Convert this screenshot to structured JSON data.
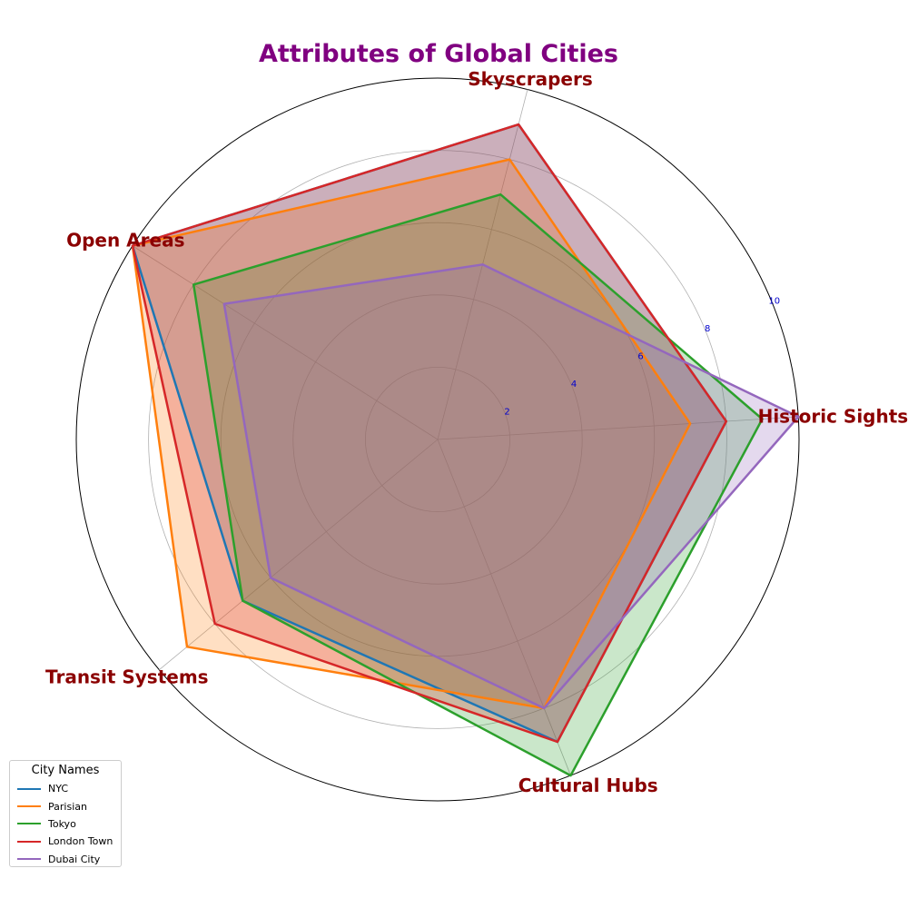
{
  "chart_data": {
    "type": "radar",
    "title": "Attributes of Global Cities",
    "categories": [
      "Historic Sights",
      "Skyscrapers",
      "Open Areas",
      "Transit Systems",
      "Cultural Hubs"
    ],
    "rlim": [
      0,
      10
    ],
    "rticks": [
      2,
      4,
      6,
      8,
      10
    ],
    "grid": true,
    "legend_title": "City Names",
    "legend_position": "bottom-left",
    "series": [
      {
        "name": "NYC",
        "color": "#1f77b4",
        "values": [
          8,
          9,
          10,
          7,
          9
        ]
      },
      {
        "name": "Parisian",
        "color": "#ff7f0e",
        "values": [
          7,
          8,
          10,
          9,
          8
        ]
      },
      {
        "name": "Tokyo",
        "color": "#2ca02c",
        "values": [
          9,
          7,
          8,
          7,
          10
        ]
      },
      {
        "name": "London Town",
        "color": "#d62728",
        "values": [
          8,
          9,
          10,
          8,
          9
        ]
      },
      {
        "name": "Dubai City",
        "color": "#9467bd",
        "values": [
          10,
          5,
          7,
          6,
          8
        ]
      }
    ]
  }
}
